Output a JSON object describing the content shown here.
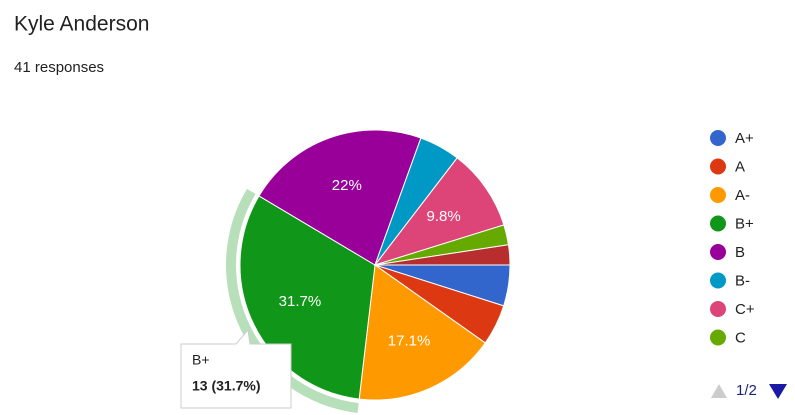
{
  "header": {
    "title": "Kyle Anderson",
    "subtitle": "41 responses"
  },
  "chart_data": {
    "type": "pie",
    "categories": [
      "A+",
      "A",
      "A-",
      "B+",
      "B",
      "B-",
      "C+",
      "C",
      null
    ],
    "values": [
      4.9,
      4.9,
      17.1,
      31.7,
      22,
      4.9,
      9.8,
      2.4,
      2.4
    ],
    "value_labels": [
      null,
      null,
      "17.1%",
      "31.7%",
      "22%",
      null,
      "9.8%",
      null,
      null
    ],
    "colors": [
      "#3366cc",
      "#dc3912",
      "#ff9900",
      "#109618",
      "#990099",
      "#0099c6",
      "#dd4477",
      "#66aa00",
      "#b82e2e"
    ],
    "legend": "right",
    "highlight": 3,
    "tooltip": {
      "label": "B+",
      "text": "13 (31.7%)"
    },
    "legend_page": "1/2"
  }
}
